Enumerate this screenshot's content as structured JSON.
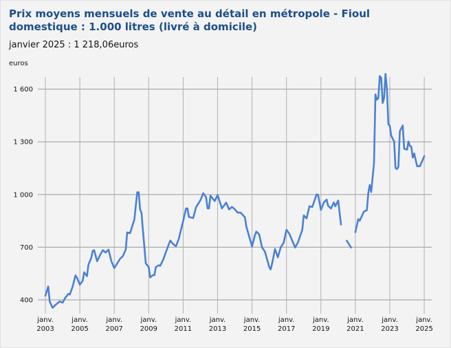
{
  "chart_data": {
    "type": "line",
    "title": "Prix moyens mensuels de vente au détail en métropole - Fioul domestique : 1.000 litres (livré à domicile)",
    "subtitle": "janvier 2025 : 1 218,06euros",
    "ylabel": "euros",
    "xlabel": "",
    "ylim": [
      330,
      1740
    ],
    "xlim": [
      "2002-08",
      "2025-05"
    ],
    "grid": true,
    "line_color": "#4a80d4",
    "y_ticks": [
      {
        "value": 400,
        "label": "400"
      },
      {
        "value": 700,
        "label": "700"
      },
      {
        "value": 1000,
        "label": "1 000"
      },
      {
        "value": 1300,
        "label": "1 300"
      },
      {
        "value": 1600,
        "label": "1 600"
      }
    ],
    "x_ticks": [
      {
        "date": "2003-01",
        "line1": "janv.",
        "line2": "2003"
      },
      {
        "date": "2005-01",
        "line1": "janv.",
        "line2": "2005"
      },
      {
        "date": "2007-01",
        "line1": "janv.",
        "line2": "2007"
      },
      {
        "date": "2009-01",
        "line1": "janv.",
        "line2": "2009"
      },
      {
        "date": "2011-01",
        "line1": "janv.",
        "line2": "2011"
      },
      {
        "date": "2013-01",
        "line1": "janv.",
        "line2": "2013"
      },
      {
        "date": "2015-01",
        "line1": "janv.",
        "line2": "2015"
      },
      {
        "date": "2017-01",
        "line1": "janv.",
        "line2": "2017"
      },
      {
        "date": "2019-01",
        "line1": "janv.",
        "line2": "2019"
      },
      {
        "date": "2021-01",
        "line1": "janv.",
        "line2": "2021"
      },
      {
        "date": "2023-01",
        "line1": "janv.",
        "line2": "2023"
      },
      {
        "date": "2025-01",
        "line1": "janv.",
        "line2": "2025"
      }
    ],
    "series": [
      {
        "points": [
          [
            "2003-01",
            424
          ],
          [
            "2003-03",
            476
          ],
          [
            "2003-04",
            391
          ],
          [
            "2003-06",
            355
          ],
          [
            "2003-08",
            371
          ],
          [
            "2003-11",
            391
          ],
          [
            "2004-01",
            384
          ],
          [
            "2004-03",
            413
          ],
          [
            "2004-05",
            434
          ],
          [
            "2004-06",
            430
          ],
          [
            "2004-08",
            476
          ],
          [
            "2004-10",
            539
          ],
          [
            "2004-11",
            526
          ],
          [
            "2005-01",
            486
          ],
          [
            "2005-03",
            509
          ],
          [
            "2005-04",
            557
          ],
          [
            "2005-06",
            535
          ],
          [
            "2005-07",
            600
          ],
          [
            "2005-09",
            640
          ],
          [
            "2005-10",
            679
          ],
          [
            "2005-11",
            683
          ],
          [
            "2006-01",
            620
          ],
          [
            "2006-03",
            653
          ],
          [
            "2006-05",
            683
          ],
          [
            "2006-07",
            670
          ],
          [
            "2006-09",
            686
          ],
          [
            "2006-11",
            620
          ],
          [
            "2007-01",
            581
          ],
          [
            "2007-03",
            607
          ],
          [
            "2007-05",
            633
          ],
          [
            "2007-07",
            649
          ],
          [
            "2007-09",
            686
          ],
          [
            "2007-10",
            784
          ],
          [
            "2007-12",
            780
          ],
          [
            "2008-02",
            832
          ],
          [
            "2008-03",
            856
          ],
          [
            "2008-05",
            1013
          ],
          [
            "2008-06",
            1013
          ],
          [
            "2008-07",
            915
          ],
          [
            "2008-08",
            895
          ],
          [
            "2008-09",
            790
          ],
          [
            "2008-11",
            607
          ],
          [
            "2009-01",
            587
          ],
          [
            "2009-02",
            528
          ],
          [
            "2009-04",
            541
          ],
          [
            "2009-05",
            541
          ],
          [
            "2009-06",
            587
          ],
          [
            "2009-08",
            597
          ],
          [
            "2009-09",
            594
          ],
          [
            "2009-11",
            627
          ],
          [
            "2010-01",
            672
          ],
          [
            "2010-04",
            738
          ],
          [
            "2010-06",
            718
          ],
          [
            "2010-08",
            705
          ],
          [
            "2010-10",
            748
          ],
          [
            "2011-01",
            849
          ],
          [
            "2011-03",
            921
          ],
          [
            "2011-04",
            921
          ],
          [
            "2011-05",
            872
          ],
          [
            "2011-08",
            866
          ],
          [
            "2011-10",
            928
          ],
          [
            "2012-01",
            967
          ],
          [
            "2012-03",
            1007
          ],
          [
            "2012-05",
            984
          ],
          [
            "2012-06",
            921
          ],
          [
            "2012-07",
            921
          ],
          [
            "2012-08",
            993
          ],
          [
            "2012-11",
            963
          ],
          [
            "2013-01",
            997
          ],
          [
            "2013-04",
            921
          ],
          [
            "2013-07",
            954
          ],
          [
            "2013-09",
            915
          ],
          [
            "2013-11",
            929
          ],
          [
            "2014-01",
            916
          ],
          [
            "2014-03",
            897
          ],
          [
            "2014-05",
            897
          ],
          [
            "2014-08",
            871
          ],
          [
            "2014-09",
            818
          ],
          [
            "2015-01",
            703
          ],
          [
            "2015-03",
            769
          ],
          [
            "2015-04",
            789
          ],
          [
            "2015-06",
            773
          ],
          [
            "2015-08",
            698
          ],
          [
            "2015-10",
            674
          ],
          [
            "2016-01",
            586
          ],
          [
            "2016-02",
            573
          ],
          [
            "2016-03",
            607
          ],
          [
            "2016-05",
            690
          ],
          [
            "2016-07",
            642
          ],
          [
            "2016-09",
            701
          ],
          [
            "2016-11",
            724
          ],
          [
            "2017-01",
            799
          ],
          [
            "2017-03",
            776
          ],
          [
            "2017-07",
            698
          ],
          [
            "2017-09",
            727
          ],
          [
            "2017-12",
            799
          ],
          [
            "2018-01",
            881
          ],
          [
            "2018-03",
            864
          ],
          [
            "2018-05",
            933
          ],
          [
            "2018-07",
            929
          ],
          [
            "2018-10",
            1001
          ],
          [
            "2018-11",
            998
          ],
          [
            "2019-01",
            912
          ],
          [
            "2019-03",
            955
          ],
          [
            "2019-05",
            971
          ],
          [
            "2019-06",
            936
          ],
          [
            "2019-08",
            920
          ],
          [
            "2019-10",
            955
          ],
          [
            "2019-11",
            933
          ],
          [
            "2020-01",
            966
          ],
          [
            "2020-03",
            829
          ],
          [
            "2020-05",
            null
          ],
          [
            "2020-07",
            737
          ],
          [
            "2020-10",
            698
          ],
          [
            "2020-12",
            null
          ],
          [
            "2021-01",
            786
          ],
          [
            "2021-03",
            860
          ],
          [
            "2021-04",
            851
          ],
          [
            "2021-07",
            903
          ],
          [
            "2021-09",
            910
          ],
          [
            "2021-10",
            1008
          ],
          [
            "2021-11",
            1054
          ],
          [
            "2021-12",
            1014
          ],
          [
            "2022-02",
            1178
          ],
          [
            "2022-03",
            1570
          ],
          [
            "2022-04",
            1540
          ],
          [
            "2022-05",
            1550
          ],
          [
            "2022-06",
            1674
          ],
          [
            "2022-07",
            1665
          ],
          [
            "2022-08",
            1521
          ],
          [
            "2022-09",
            1550
          ],
          [
            "2022-10",
            1687
          ],
          [
            "2022-11",
            1602
          ],
          [
            "2022-12",
            1400
          ],
          [
            "2023-01",
            1391
          ],
          [
            "2023-02",
            1334
          ],
          [
            "2023-04",
            1302
          ],
          [
            "2023-05",
            1151
          ],
          [
            "2023-06",
            1145
          ],
          [
            "2023-07",
            1158
          ],
          [
            "2023-08",
            1361
          ],
          [
            "2023-10",
            1393
          ],
          [
            "2023-11",
            1260
          ],
          [
            "2024-01",
            1256
          ],
          [
            "2024-02",
            1302
          ],
          [
            "2024-03",
            1276
          ],
          [
            "2024-04",
            1273
          ],
          [
            "2024-05",
            1210
          ],
          [
            "2024-06",
            1234
          ],
          [
            "2024-08",
            1161
          ],
          [
            "2024-10",
            1161
          ],
          [
            "2025-01",
            1218.06
          ]
        ]
      }
    ]
  }
}
